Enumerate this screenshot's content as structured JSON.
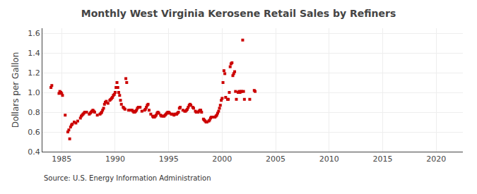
{
  "chart_data": {
    "type": "scatter",
    "title": "Monthly West Virginia Kerosene Retail Sales by Refiners",
    "ylabel": "Dollars per Gallon",
    "annotations": [
      "Source: U.S. Energy Information Administration"
    ],
    "xlim": [
      1983.2,
      2022.5
    ],
    "ylim": [
      0.4,
      1.65
    ],
    "xticks": [
      1985,
      1990,
      1995,
      2000,
      2005,
      2010,
      2015,
      2020
    ],
    "yticks": [
      0.4,
      0.6,
      0.8,
      {
        "value": 1.0,
        "label": "1.0"
      },
      1.2,
      1.4,
      1.6
    ],
    "grid": true,
    "color": "#cc0000",
    "marker": "square",
    "x": [
      1984.0,
      1984.08,
      1984.75,
      1984.83,
      1984.92,
      1985.0,
      1985.08,
      1985.33,
      1985.58,
      1985.67,
      1985.75,
      1985.83,
      1985.92,
      1986.0,
      1986.17,
      1986.33,
      1986.5,
      1986.75,
      1986.83,
      1986.92,
      1987.0,
      1987.08,
      1987.17,
      1987.33,
      1987.58,
      1987.67,
      1987.75,
      1987.83,
      1987.92,
      1988.0,
      1988.08,
      1988.33,
      1988.58,
      1988.67,
      1988.75,
      1988.83,
      1988.92,
      1989.0,
      1989.08,
      1989.17,
      1989.33,
      1989.5,
      1989.58,
      1989.67,
      1989.75,
      1989.83,
      1989.92,
      1990.0,
      1990.08,
      1990.17,
      1990.25,
      1990.33,
      1990.42,
      1990.5,
      1990.58,
      1990.75,
      1990.83,
      1990.92,
      1991.0,
      1991.08,
      1991.25,
      1991.42,
      1991.58,
      1991.67,
      1991.75,
      1991.83,
      1991.92,
      1992.0,
      1992.08,
      1992.17,
      1992.33,
      1992.5,
      1992.75,
      1992.83,
      1992.92,
      1993.0,
      1993.08,
      1993.17,
      1993.33,
      1993.5,
      1993.58,
      1993.67,
      1993.75,
      1993.83,
      1993.92,
      1994.0,
      1994.08,
      1994.25,
      1994.33,
      1994.5,
      1994.58,
      1994.67,
      1994.75,
      1994.83,
      1994.92,
      1995.0,
      1995.08,
      1995.25,
      1995.33,
      1995.5,
      1995.58,
      1995.67,
      1995.75,
      1995.83,
      1995.92,
      1996.0,
      1996.08,
      1996.33,
      1996.5,
      1996.58,
      1996.67,
      1996.75,
      1996.83,
      1996.92,
      1997.0,
      1997.08,
      1997.25,
      1997.33,
      1997.5,
      1997.58,
      1997.75,
      1997.83,
      1997.92,
      1998.0,
      1998.08,
      1998.25,
      1998.33,
      1998.42,
      1998.5,
      1998.58,
      1998.75,
      1998.83,
      1998.92,
      1999.0,
      1999.25,
      1999.33,
      1999.42,
      1999.5,
      1999.58,
      1999.67,
      1999.75,
      1999.83,
      1999.92,
      2000.0,
      2000.08,
      2000.17,
      2000.25,
      2000.33,
      2000.5,
      2000.58,
      2000.67,
      2000.75,
      2000.83,
      2000.92,
      2001.0,
      2001.08,
      2001.17,
      2001.25,
      2001.33,
      2001.5,
      2001.58,
      2001.67,
      2001.75,
      2001.83,
      2001.92,
      2002.0,
      2002.08,
      2002.58,
      2003.0,
      2003.08
    ],
    "values": [
      1.05,
      1.07,
      0.99,
      1.01,
      1.0,
      0.99,
      0.97,
      0.77,
      0.6,
      0.62,
      0.53,
      0.65,
      0.67,
      0.68,
      0.7,
      0.69,
      0.71,
      0.74,
      0.76,
      0.77,
      0.78,
      0.79,
      0.8,
      0.8,
      0.78,
      0.79,
      0.8,
      0.81,
      0.82,
      0.81,
      0.8,
      0.77,
      0.78,
      0.79,
      0.8,
      0.82,
      0.84,
      0.88,
      0.9,
      0.91,
      0.89,
      0.92,
      0.93,
      0.94,
      0.95,
      0.97,
      0.98,
      1.0,
      1.05,
      1.1,
      1.05,
      1.0,
      0.97,
      0.92,
      0.88,
      0.85,
      0.84,
      0.83,
      1.14,
      1.1,
      0.82,
      0.82,
      0.82,
      0.81,
      0.8,
      0.8,
      0.81,
      0.82,
      0.84,
      0.85,
      0.85,
      0.81,
      0.82,
      0.83,
      0.85,
      0.87,
      0.88,
      0.82,
      0.78,
      0.76,
      0.75,
      0.75,
      0.76,
      0.77,
      0.79,
      0.8,
      0.79,
      0.77,
      0.76,
      0.76,
      0.76,
      0.77,
      0.78,
      0.79,
      0.8,
      0.8,
      0.79,
      0.78,
      0.78,
      0.77,
      0.78,
      0.78,
      0.78,
      0.79,
      0.8,
      0.84,
      0.85,
      0.82,
      0.81,
      0.81,
      0.82,
      0.83,
      0.85,
      0.87,
      0.88,
      0.87,
      0.85,
      0.84,
      0.81,
      0.8,
      0.8,
      0.81,
      0.82,
      0.82,
      0.8,
      0.73,
      0.72,
      0.71,
      0.7,
      0.7,
      0.71,
      0.72,
      0.74,
      0.75,
      0.75,
      0.75,
      0.76,
      0.77,
      0.79,
      0.81,
      0.84,
      0.87,
      0.92,
      0.94,
      1.1,
      1.22,
      1.19,
      0.95,
      0.93,
      0.93,
      1.0,
      1.26,
      1.29,
      1.3,
      1.17,
      1.19,
      1.21,
      1.01,
      0.93,
      1.0,
      1.01,
      1.0,
      1.01,
      1.01,
      1.53,
      1.01,
      0.93,
      0.93,
      1.02,
      1.01
    ]
  }
}
